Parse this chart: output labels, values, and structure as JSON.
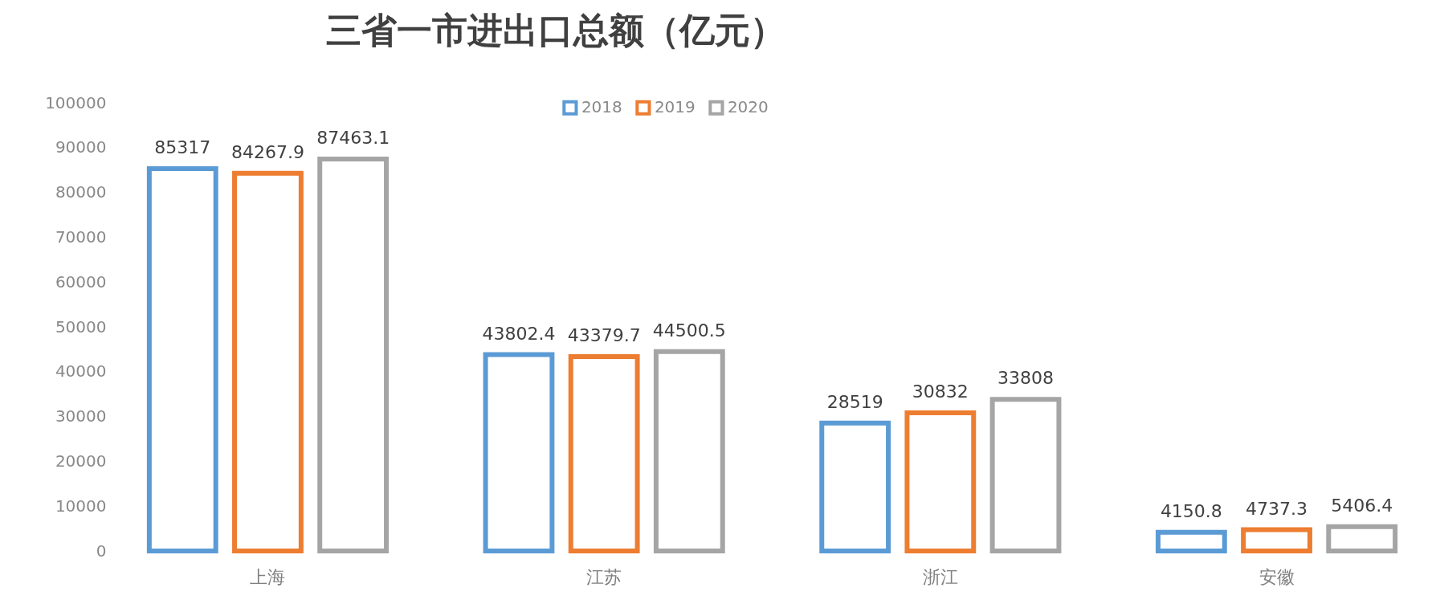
{
  "chart_data": {
    "type": "bar",
    "title": "三省一市进出口总额（亿元）",
    "categories": [
      "上海",
      "江苏",
      "浙江",
      "安徽"
    ],
    "series": [
      {
        "name": "2018",
        "color": "#5b9bd5",
        "values": [
          85317,
          43802.4,
          28519,
          4150.8
        ]
      },
      {
        "name": "2019",
        "color": "#ed7d31",
        "values": [
          84267.9,
          43379.7,
          30832,
          4737.3
        ]
      },
      {
        "name": "2020",
        "color": "#a5a5a5",
        "values": [
          87463.1,
          44500.5,
          33808,
          5406.4
        ]
      }
    ],
    "ylim": [
      0,
      100000
    ],
    "yticks": [
      0,
      10000,
      20000,
      30000,
      40000,
      50000,
      60000,
      70000,
      80000,
      90000,
      100000
    ],
    "grid": false,
    "legend": "top",
    "data_labels": true
  }
}
